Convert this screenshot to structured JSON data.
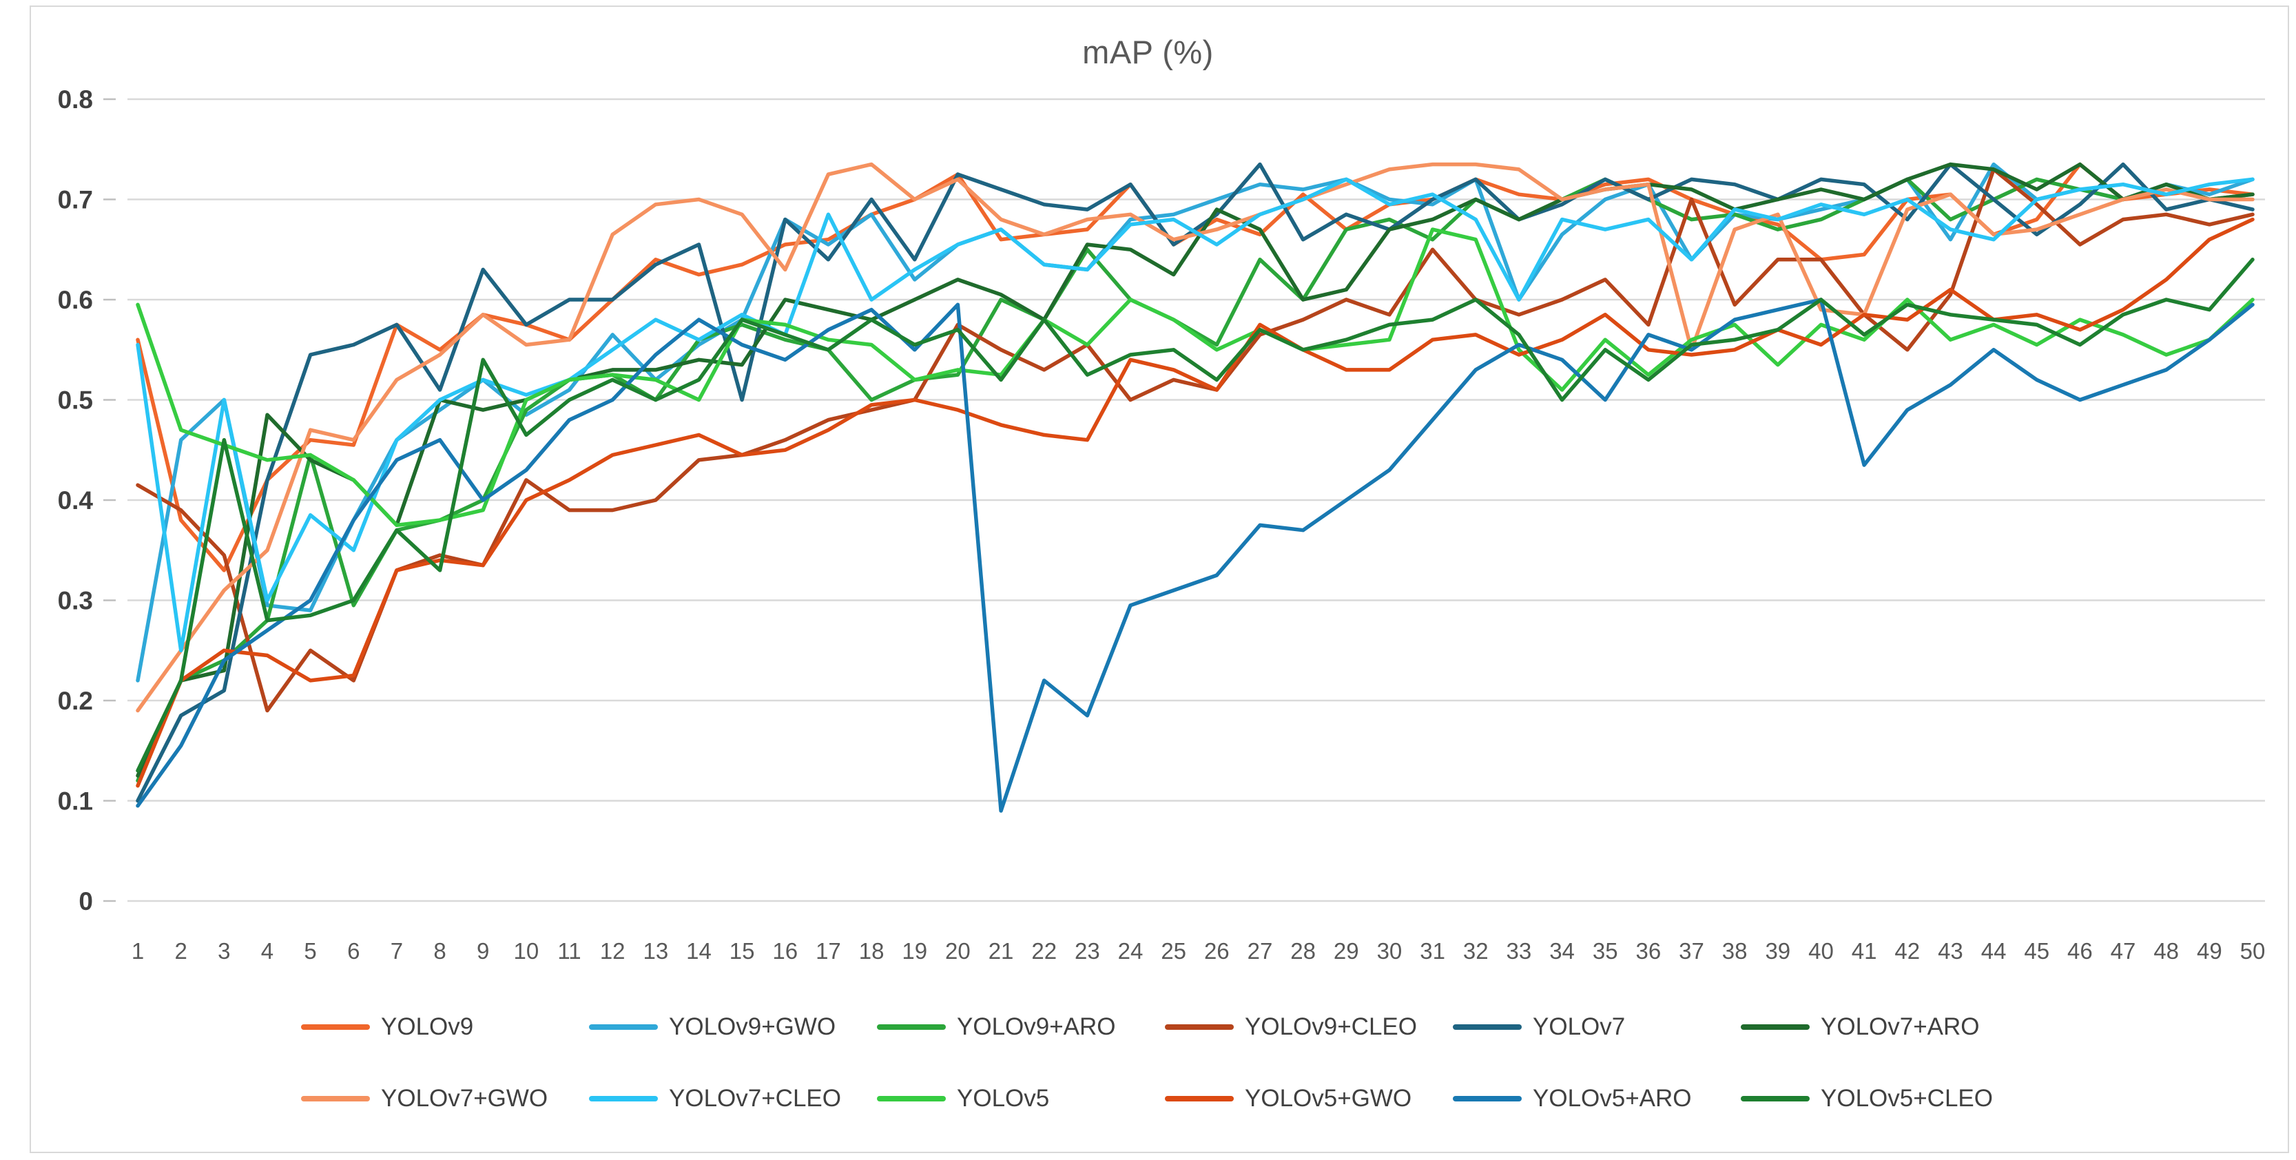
{
  "title": "mAP (%)",
  "colors": {
    "background": "#ffffff",
    "frame_border": "#d9d9d9",
    "gridline": "#d9d9d9",
    "tick": "#bfbfbf",
    "y_label": "#404040",
    "x_label": "#595959",
    "title": "#595959",
    "legend_text": "#404040"
  },
  "chart_data": {
    "type": "line",
    "title": "mAP (%)",
    "xlabel": "",
    "ylabel": "",
    "ylim": [
      0,
      0.8
    ],
    "grid": "horizontal",
    "legend_position": "bottom",
    "legend_rows": 2,
    "legend_items_per_row": 6,
    "y_ticks": [
      "0",
      "0.1",
      "0.2",
      "0.3",
      "0.4",
      "0.5",
      "0.6",
      "0.7",
      "0.8"
    ],
    "x": [
      1,
      2,
      3,
      4,
      5,
      6,
      7,
      8,
      9,
      10,
      11,
      12,
      13,
      14,
      15,
      16,
      17,
      18,
      19,
      20,
      21,
      22,
      23,
      24,
      25,
      26,
      27,
      28,
      29,
      30,
      31,
      32,
      33,
      34,
      35,
      36,
      37,
      38,
      39,
      40,
      41,
      42,
      43,
      44,
      45,
      46,
      47,
      48,
      49,
      50
    ],
    "series": [
      {
        "name": "YOLOv9",
        "color": "#F0662B",
        "values": [
          0.56,
          0.38,
          0.33,
          0.42,
          0.46,
          0.455,
          0.575,
          0.55,
          0.585,
          0.575,
          0.56,
          0.6,
          0.64,
          0.625,
          0.635,
          0.655,
          0.66,
          0.685,
          0.7,
          0.725,
          0.66,
          0.665,
          0.67,
          0.715,
          0.655,
          0.68,
          0.665,
          0.705,
          0.67,
          0.695,
          0.7,
          0.72,
          0.705,
          0.7,
          0.715,
          0.72,
          0.7,
          0.685,
          0.675,
          0.64,
          0.645,
          0.7,
          0.705,
          0.665,
          0.68,
          0.735,
          0.7,
          0.705,
          0.71,
          0.705
        ]
      },
      {
        "name": "YOLOv9+GWO",
        "color": "#2FA8D8",
        "values": [
          0.22,
          0.46,
          0.5,
          0.295,
          0.29,
          0.38,
          0.46,
          0.49,
          0.52,
          0.485,
          0.51,
          0.565,
          0.52,
          0.555,
          0.58,
          0.68,
          0.655,
          0.685,
          0.62,
          0.655,
          0.67,
          0.635,
          0.63,
          0.68,
          0.685,
          0.7,
          0.715,
          0.71,
          0.72,
          0.7,
          0.695,
          0.72,
          0.6,
          0.665,
          0.7,
          0.715,
          0.64,
          0.685,
          0.68,
          0.69,
          0.7,
          0.72,
          0.66,
          0.735,
          0.7,
          0.71,
          0.7,
          0.715,
          0.705,
          0.72
        ]
      },
      {
        "name": "YOLOv9+ARO",
        "color": "#2BA63A",
        "values": [
          0.12,
          0.22,
          0.24,
          0.28,
          0.445,
          0.295,
          0.37,
          0.38,
          0.4,
          0.49,
          0.52,
          0.525,
          0.5,
          0.56,
          0.575,
          0.56,
          0.55,
          0.5,
          0.52,
          0.525,
          0.6,
          0.58,
          0.65,
          0.6,
          0.58,
          0.555,
          0.64,
          0.6,
          0.67,
          0.68,
          0.66,
          0.7,
          0.68,
          0.7,
          0.72,
          0.7,
          0.68,
          0.685,
          0.67,
          0.68,
          0.7,
          0.72,
          0.68,
          0.7,
          0.72,
          0.71,
          0.7,
          0.715,
          0.7,
          0.705
        ]
      },
      {
        "name": "YOLOv9+CLEO",
        "color": "#B6441B",
        "values": [
          0.415,
          0.39,
          0.345,
          0.19,
          0.25,
          0.22,
          0.33,
          0.345,
          0.335,
          0.42,
          0.39,
          0.39,
          0.4,
          0.44,
          0.445,
          0.46,
          0.48,
          0.49,
          0.5,
          0.575,
          0.55,
          0.53,
          0.555,
          0.5,
          0.52,
          0.51,
          0.565,
          0.58,
          0.6,
          0.585,
          0.65,
          0.6,
          0.585,
          0.6,
          0.62,
          0.575,
          0.7,
          0.595,
          0.64,
          0.64,
          0.585,
          0.55,
          0.605,
          0.73,
          0.695,
          0.655,
          0.68,
          0.685,
          0.675,
          0.685
        ]
      },
      {
        "name": "YOLOv7",
        "color": "#1E6482",
        "values": [
          0.1,
          0.185,
          0.21,
          0.42,
          0.545,
          0.555,
          0.575,
          0.51,
          0.63,
          0.575,
          0.6,
          0.6,
          0.635,
          0.655,
          0.5,
          0.68,
          0.64,
          0.7,
          0.64,
          0.725,
          0.71,
          0.695,
          0.69,
          0.715,
          0.655,
          0.685,
          0.735,
          0.66,
          0.685,
          0.67,
          0.7,
          0.72,
          0.68,
          0.695,
          0.72,
          0.7,
          0.72,
          0.715,
          0.7,
          0.72,
          0.715,
          0.68,
          0.735,
          0.7,
          0.665,
          0.695,
          0.735,
          0.69,
          0.7,
          0.69
        ]
      },
      {
        "name": "YOLOv7+ARO",
        "color": "#1F6B2C",
        "values": [
          0.125,
          0.22,
          0.23,
          0.485,
          0.44,
          0.42,
          0.375,
          0.5,
          0.49,
          0.5,
          0.52,
          0.53,
          0.53,
          0.54,
          0.535,
          0.6,
          0.59,
          0.58,
          0.6,
          0.62,
          0.605,
          0.58,
          0.655,
          0.65,
          0.625,
          0.69,
          0.67,
          0.6,
          0.61,
          0.67,
          0.68,
          0.7,
          0.68,
          0.7,
          0.71,
          0.715,
          0.71,
          0.69,
          0.7,
          0.71,
          0.7,
          0.72,
          0.735,
          0.73,
          0.71,
          0.735,
          0.7,
          0.715,
          0.7,
          0.705
        ]
      },
      {
        "name": "YOLOv7+GWO",
        "color": "#F5915F",
        "values": [
          0.19,
          0.25,
          0.31,
          0.35,
          0.47,
          0.46,
          0.52,
          0.545,
          0.585,
          0.555,
          0.56,
          0.665,
          0.695,
          0.7,
          0.685,
          0.63,
          0.725,
          0.735,
          0.7,
          0.72,
          0.68,
          0.665,
          0.68,
          0.685,
          0.66,
          0.67,
          0.685,
          0.7,
          0.715,
          0.73,
          0.735,
          0.735,
          0.73,
          0.7,
          0.71,
          0.715,
          0.55,
          0.67,
          0.685,
          0.59,
          0.585,
          0.69,
          0.705,
          0.665,
          0.67,
          0.685,
          0.7,
          0.71,
          0.7,
          0.7
        ]
      },
      {
        "name": "YOLOv7+CLEO",
        "color": "#29C4F5",
        "values": [
          0.555,
          0.25,
          0.5,
          0.3,
          0.385,
          0.35,
          0.46,
          0.5,
          0.52,
          0.505,
          0.52,
          0.55,
          0.58,
          0.56,
          0.585,
          0.565,
          0.685,
          0.6,
          0.63,
          0.655,
          0.67,
          0.635,
          0.63,
          0.675,
          0.68,
          0.655,
          0.685,
          0.7,
          0.72,
          0.695,
          0.705,
          0.68,
          0.6,
          0.68,
          0.67,
          0.68,
          0.64,
          0.69,
          0.68,
          0.695,
          0.685,
          0.7,
          0.67,
          0.66,
          0.7,
          0.71,
          0.715,
          0.705,
          0.715,
          0.72
        ]
      },
      {
        "name": "YOLOv5",
        "color": "#36CC41",
        "values": [
          0.595,
          0.47,
          0.455,
          0.44,
          0.445,
          0.42,
          0.375,
          0.38,
          0.39,
          0.5,
          0.52,
          0.525,
          0.52,
          0.5,
          0.58,
          0.575,
          0.56,
          0.555,
          0.52,
          0.53,
          0.525,
          0.58,
          0.555,
          0.6,
          0.58,
          0.55,
          0.57,
          0.55,
          0.555,
          0.56,
          0.67,
          0.66,
          0.55,
          0.51,
          0.56,
          0.525,
          0.56,
          0.575,
          0.535,
          0.575,
          0.56,
          0.6,
          0.56,
          0.575,
          0.555,
          0.58,
          0.565,
          0.545,
          0.56,
          0.6
        ]
      },
      {
        "name": "YOLOv5+GWO",
        "color": "#DC4A12",
        "values": [
          0.115,
          0.22,
          0.25,
          0.245,
          0.22,
          0.225,
          0.33,
          0.34,
          0.335,
          0.4,
          0.42,
          0.445,
          0.455,
          0.465,
          0.445,
          0.45,
          0.47,
          0.495,
          0.5,
          0.49,
          0.475,
          0.465,
          0.46,
          0.54,
          0.53,
          0.51,
          0.575,
          0.55,
          0.53,
          0.53,
          0.56,
          0.565,
          0.545,
          0.56,
          0.585,
          0.55,
          0.545,
          0.55,
          0.57,
          0.555,
          0.585,
          0.58,
          0.61,
          0.58,
          0.585,
          0.57,
          0.59,
          0.62,
          0.66,
          0.68
        ]
      },
      {
        "name": "YOLOv5+ARO",
        "color": "#1879B2",
        "values": [
          0.095,
          0.155,
          0.24,
          0.27,
          0.3,
          0.38,
          0.44,
          0.46,
          0.4,
          0.43,
          0.48,
          0.5,
          0.545,
          0.58,
          0.555,
          0.54,
          0.57,
          0.59,
          0.55,
          0.595,
          0.09,
          0.22,
          0.185,
          0.295,
          0.31,
          0.325,
          0.375,
          0.37,
          0.4,
          0.43,
          0.48,
          0.53,
          0.555,
          0.54,
          0.5,
          0.565,
          0.55,
          0.58,
          0.59,
          0.6,
          0.435,
          0.49,
          0.515,
          0.55,
          0.52,
          0.5,
          0.515,
          0.53,
          0.56,
          0.595
        ]
      },
      {
        "name": "YOLOv5+CLEO",
        "color": "#1E8030",
        "values": [
          0.13,
          0.22,
          0.46,
          0.28,
          0.285,
          0.3,
          0.37,
          0.33,
          0.54,
          0.465,
          0.5,
          0.52,
          0.5,
          0.52,
          0.58,
          0.565,
          0.55,
          0.58,
          0.555,
          0.57,
          0.52,
          0.58,
          0.525,
          0.545,
          0.55,
          0.52,
          0.57,
          0.55,
          0.56,
          0.575,
          0.58,
          0.6,
          0.565,
          0.5,
          0.55,
          0.52,
          0.555,
          0.56,
          0.57,
          0.6,
          0.565,
          0.595,
          0.585,
          0.58,
          0.575,
          0.555,
          0.585,
          0.6,
          0.59,
          0.64
        ]
      }
    ]
  }
}
